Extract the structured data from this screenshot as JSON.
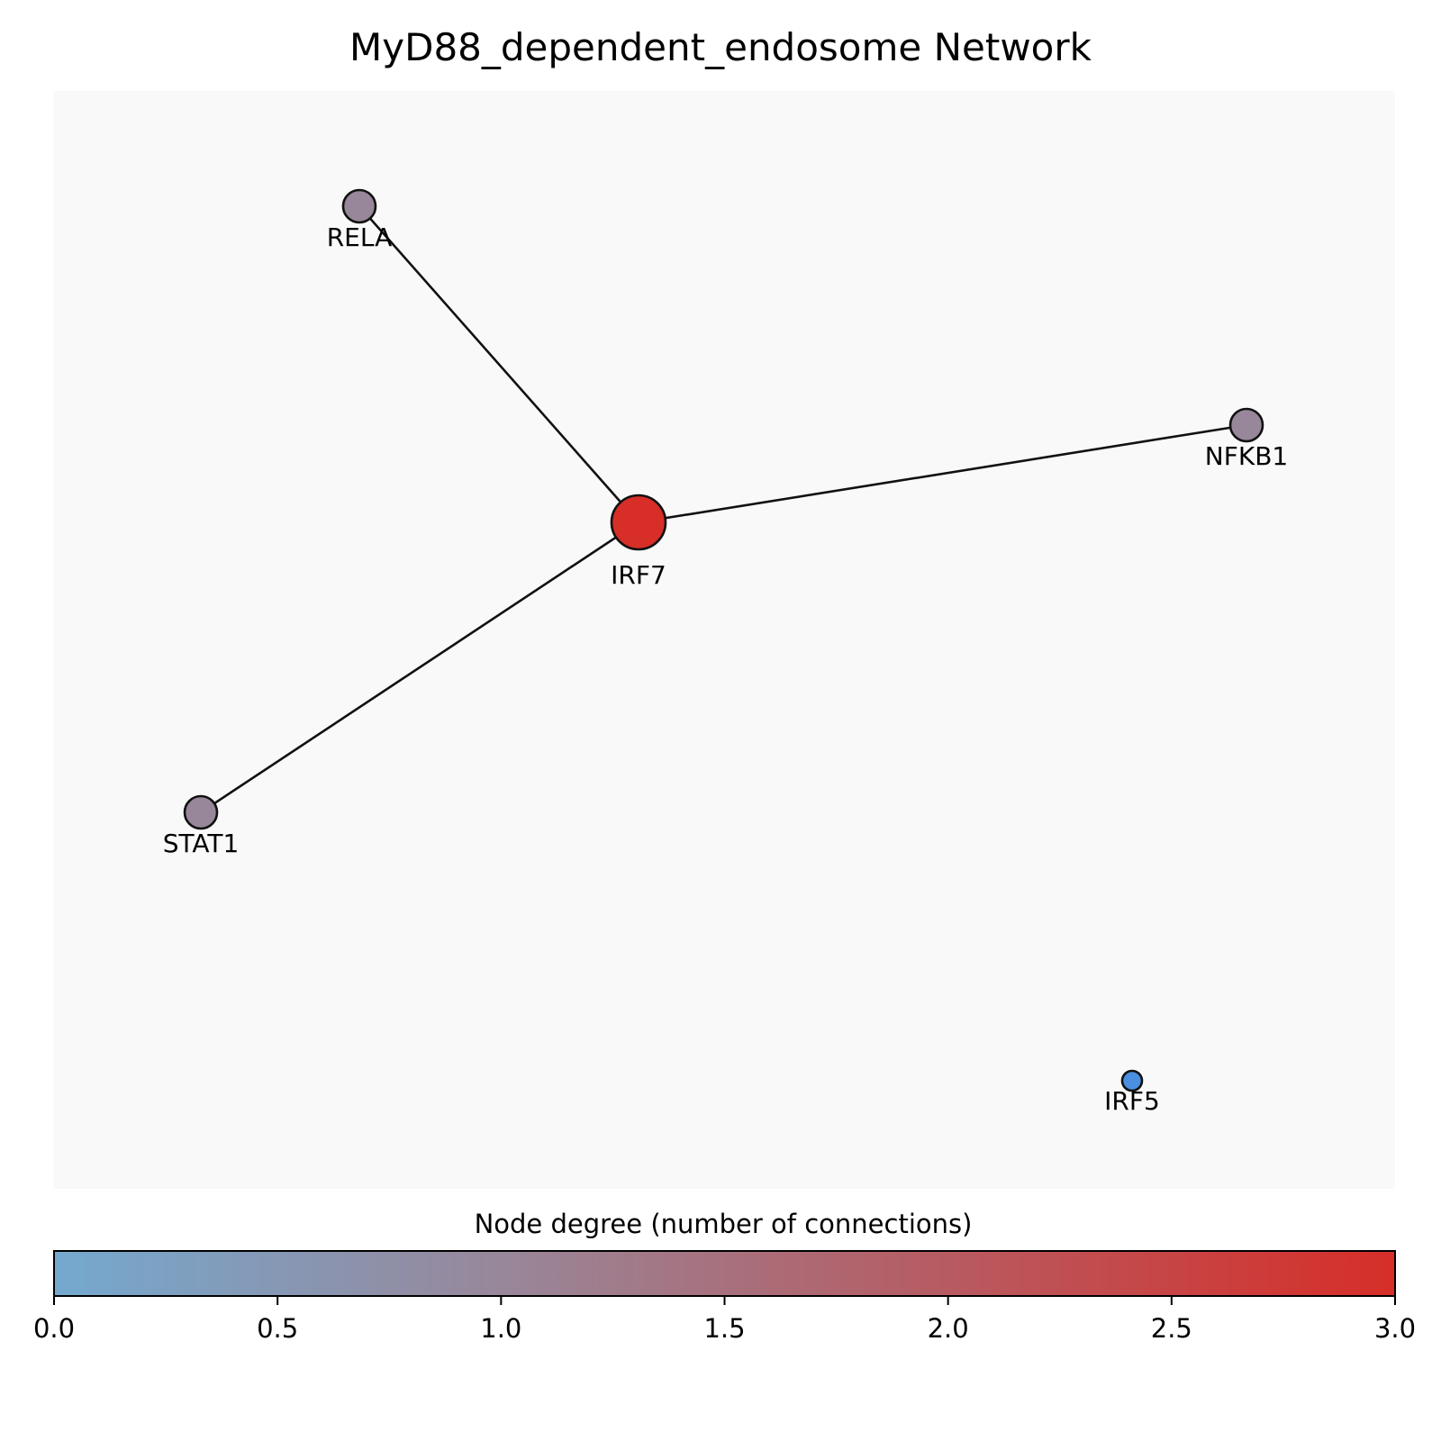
{
  "title": "MyD88_dependent_endosome Network",
  "network": {
    "nodes": [
      {
        "id": "RELA",
        "label": "RELA",
        "degree": 1,
        "color": "#98879a"
      },
      {
        "id": "NFKB1",
        "label": "NFKB1",
        "degree": 1,
        "color": "#98879a"
      },
      {
        "id": "IRF7",
        "label": "IRF7",
        "degree": 3,
        "color": "#d72e28"
      },
      {
        "id": "STAT1",
        "label": "STAT1",
        "degree": 1,
        "color": "#98879a"
      },
      {
        "id": "IRF5",
        "label": "IRF5",
        "degree": 0,
        "color": "#4a8fe0"
      }
    ],
    "edges": [
      {
        "source": "IRF7",
        "target": "RELA"
      },
      {
        "source": "IRF7",
        "target": "NFKB1"
      },
      {
        "source": "IRF7",
        "target": "STAT1"
      }
    ]
  },
  "colorbar": {
    "label": "Node degree (number of connections)",
    "range": [
      0,
      3
    ],
    "color_low": "#74a9cf",
    "color_mid": "#98879a",
    "color_high": "#d72e28",
    "ticks": [
      "0.0",
      "0.5",
      "1.0",
      "1.5",
      "2.0",
      "2.5",
      "3.0"
    ]
  }
}
